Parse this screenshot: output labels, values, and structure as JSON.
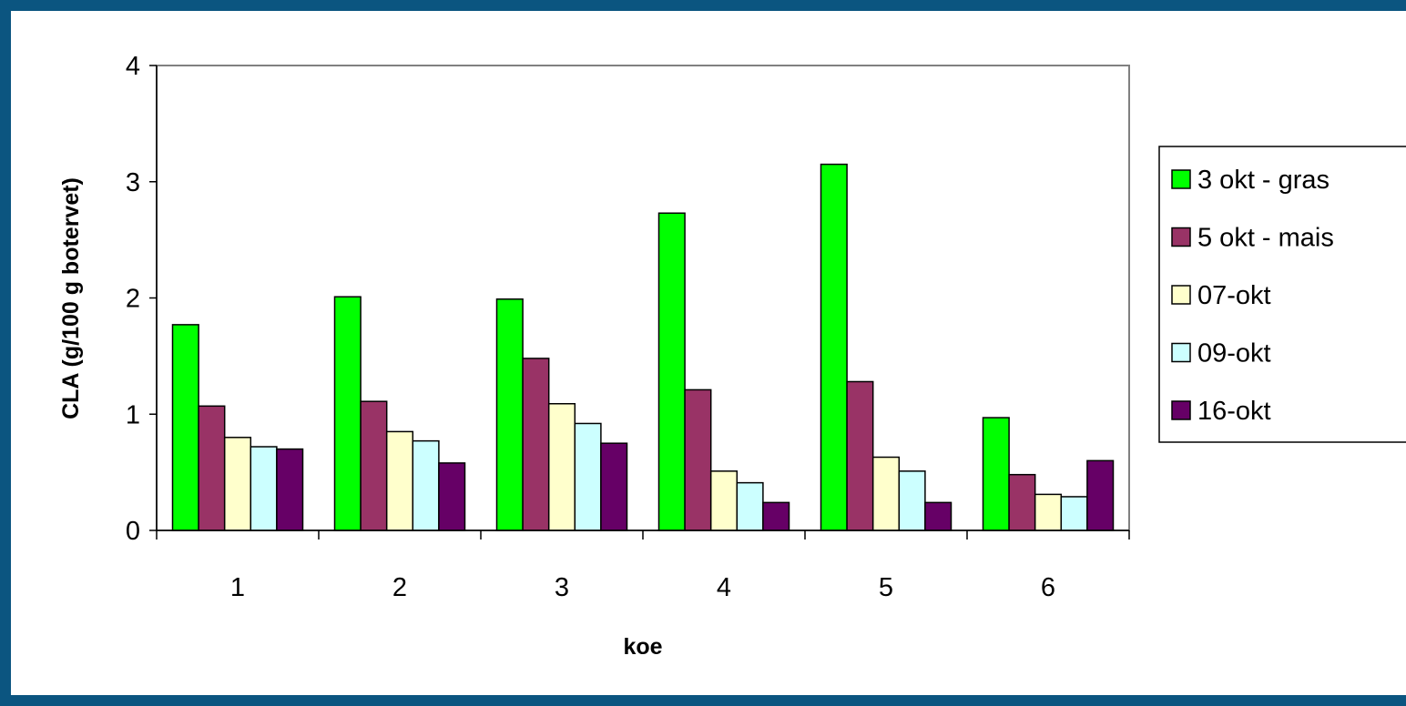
{
  "chart_data": {
    "type": "bar",
    "title": "",
    "xlabel": "koe",
    "ylabel": "CLA (g/100 g botervet)",
    "categories": [
      "1",
      "2",
      "3",
      "4",
      "5",
      "6"
    ],
    "ylim": [
      0,
      4
    ],
    "yticks": [
      "0",
      "1",
      "2",
      "3",
      "4"
    ],
    "grid": false,
    "legend_position": "right",
    "series": [
      {
        "name": "3 okt - gras",
        "color": "#00ff00",
        "values": [
          1.77,
          2.01,
          1.99,
          2.73,
          3.15,
          0.97
        ]
      },
      {
        "name": "5 okt - mais",
        "color": "#993366",
        "values": [
          1.07,
          1.11,
          1.48,
          1.21,
          1.28,
          0.48
        ]
      },
      {
        "name": "07-okt",
        "color": "#ffffcc",
        "values": [
          0.8,
          0.85,
          1.09,
          0.51,
          0.63,
          0.31
        ]
      },
      {
        "name": "09-okt",
        "color": "#ccffff",
        "values": [
          0.72,
          0.77,
          0.92,
          0.41,
          0.51,
          0.29
        ]
      },
      {
        "name": "16-okt",
        "color": "#660066",
        "values": [
          0.7,
          0.58,
          0.75,
          0.24,
          0.24,
          0.6
        ]
      }
    ]
  }
}
